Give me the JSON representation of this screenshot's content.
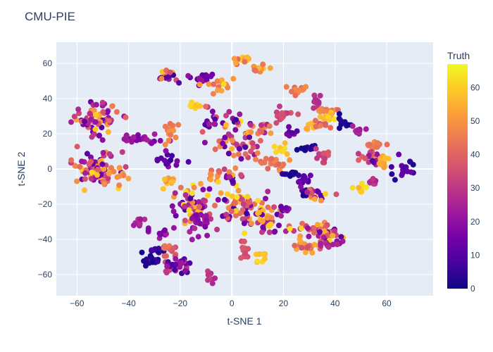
{
  "chart_data": {
    "type": "scatter",
    "title": "CMU-PIE",
    "xlabel": "t-SNE 1",
    "ylabel": "t-SNE 2",
    "xlim": [
      -68,
      78
    ],
    "ylim": [
      -72,
      72
    ],
    "xticks": [
      -60,
      -40,
      -20,
      0,
      20,
      40,
      60
    ],
    "yticks": [
      -60,
      -40,
      -20,
      0,
      20,
      40,
      60
    ],
    "grid": true,
    "colorbar": {
      "title": "Truth",
      "min": 0,
      "max": 67,
      "ticks": [
        0,
        10,
        20,
        30,
        40,
        50,
        60
      ],
      "colorscale": [
        "#0d0887",
        "#46039f",
        "#7201a8",
        "#9c179e",
        "#bd3786",
        "#d8576b",
        "#ed7953",
        "#fb9f3a",
        "#fdca26",
        "#f0f921"
      ]
    },
    "marker_size_px": 4,
    "clusters": [
      {
        "x": -53,
        "y": 29,
        "n": 70,
        "sx": 4.5,
        "sy": 4.5,
        "t": [
          10,
          60
        ]
      },
      {
        "x": -53,
        "y": 0,
        "n": 85,
        "sx": 4.5,
        "sy": 5,
        "t": [
          10,
          64
        ]
      },
      {
        "x": -36,
        "y": 17,
        "n": 25,
        "sx": 6,
        "sy": 1,
        "t": [
          15,
          25
        ]
      },
      {
        "x": -44,
        "y": -2,
        "n": 10,
        "sx": 2,
        "sy": 3,
        "t": [
          45,
          52
        ]
      },
      {
        "x": -25,
        "y": 53,
        "n": 16,
        "sx": 2,
        "sy": 2,
        "t": [
          5,
          62
        ]
      },
      {
        "x": -12,
        "y": 52,
        "n": 16,
        "sx": 2.5,
        "sy": 2,
        "t": [
          10,
          22
        ]
      },
      {
        "x": -6,
        "y": 48,
        "n": 18,
        "sx": 3,
        "sy": 2,
        "t": [
          40,
          65
        ]
      },
      {
        "x": 3,
        "y": 62,
        "n": 16,
        "sx": 1.5,
        "sy": 1.5,
        "t": [
          40,
          64
        ]
      },
      {
        "x": 11,
        "y": 56,
        "n": 14,
        "sx": 2,
        "sy": 2,
        "t": [
          40,
          64
        ]
      },
      {
        "x": -15,
        "y": 36,
        "n": 10,
        "sx": 1.5,
        "sy": 1,
        "t": [
          55,
          64
        ]
      },
      {
        "x": -24,
        "y": 20,
        "n": 14,
        "sx": 2,
        "sy": 4,
        "t": [
          40,
          52
        ]
      },
      {
        "x": -25,
        "y": 5,
        "n": 14,
        "sx": 2.5,
        "sy": 2.5,
        "t": [
          5,
          20
        ]
      },
      {
        "x": -25,
        "y": -7,
        "n": 10,
        "sx": 1.5,
        "sy": 1.5,
        "t": [
          50,
          60
        ]
      },
      {
        "x": -9,
        "y": 27,
        "n": 16,
        "sx": 2.5,
        "sy": 4,
        "t": [
          5,
          45
        ]
      },
      {
        "x": 0,
        "y": 28,
        "n": 16,
        "sx": 3,
        "sy": 3,
        "t": [
          5,
          64
        ]
      },
      {
        "x": 7,
        "y": 17,
        "n": 20,
        "sx": 3,
        "sy": 4,
        "t": [
          10,
          60
        ]
      },
      {
        "x": 13,
        "y": 23,
        "n": 10,
        "sx": 2,
        "sy": 2,
        "t": [
          25,
          55
        ]
      },
      {
        "x": -3,
        "y": 15,
        "n": 16,
        "sx": 3,
        "sy": 2,
        "t": [
          5,
          60
        ]
      },
      {
        "x": 5,
        "y": 10,
        "n": 12,
        "sx": 3,
        "sy": 2,
        "t": [
          5,
          55
        ]
      },
      {
        "x": -8,
        "y": -2,
        "n": 10,
        "sx": 2,
        "sy": 3,
        "t": [
          40,
          52
        ]
      },
      {
        "x": 0,
        "y": -5,
        "n": 22,
        "sx": 3,
        "sy": 4,
        "t": [
          5,
          64
        ]
      },
      {
        "x": -17,
        "y": -20,
        "n": 60,
        "sx": 5,
        "sy": 5.5,
        "t": [
          5,
          64
        ]
      },
      {
        "x": 5,
        "y": -22,
        "n": 70,
        "sx": 5,
        "sy": 5,
        "t": [
          5,
          64
        ]
      },
      {
        "x": -12,
        "y": -30,
        "n": 30,
        "sx": 3,
        "sy": 3,
        "t": [
          15,
          30
        ]
      },
      {
        "x": 13,
        "y": -30,
        "n": 25,
        "sx": 3,
        "sy": 3,
        "t": [
          10,
          60
        ]
      },
      {
        "x": 20,
        "y": -23,
        "n": 10,
        "sx": 2,
        "sy": 2,
        "t": [
          10,
          35
        ]
      },
      {
        "x": 11,
        "y": -50,
        "n": 8,
        "sx": 1,
        "sy": 2,
        "t": [
          55,
          64
        ]
      },
      {
        "x": 5,
        "y": -46,
        "n": 12,
        "sx": 1,
        "sy": 3,
        "t": [
          32,
          38
        ]
      },
      {
        "x": 16,
        "y": 3,
        "n": 20,
        "sx": 3,
        "sy": 2,
        "t": [
          40,
          50
        ]
      },
      {
        "x": 23,
        "y": -3,
        "n": 10,
        "sx": 2,
        "sy": 1,
        "t": [
          0,
          10
        ]
      },
      {
        "x": 25,
        "y": 45,
        "n": 14,
        "sx": 2.5,
        "sy": 1,
        "t": [
          40,
          50
        ]
      },
      {
        "x": 33,
        "y": 38,
        "n": 10,
        "sx": 1.5,
        "sy": 2,
        "t": [
          25,
          32
        ]
      },
      {
        "x": 20,
        "y": 31,
        "n": 16,
        "sx": 2.5,
        "sy": 2,
        "t": [
          30,
          38
        ]
      },
      {
        "x": 37,
        "y": 33,
        "n": 14,
        "sx": 2,
        "sy": 1,
        "t": [
          40,
          50
        ]
      },
      {
        "x": 37,
        "y": 30,
        "n": 10,
        "sx": 2,
        "sy": 1,
        "t": [
          55,
          64
        ]
      },
      {
        "x": 44,
        "y": 26,
        "n": 10,
        "sx": 1.5,
        "sy": 1.5,
        "t": [
          0,
          5
        ]
      },
      {
        "x": 31,
        "y": 25,
        "n": 10,
        "sx": 1.5,
        "sy": 1.5,
        "t": [
          50,
          58
        ]
      },
      {
        "x": 35,
        "y": 25,
        "n": 8,
        "sx": 1.5,
        "sy": 1.5,
        "t": [
          35,
          45
        ]
      },
      {
        "x": 22,
        "y": 20,
        "n": 8,
        "sx": 1.5,
        "sy": 1.5,
        "t": [
          10,
          20
        ]
      },
      {
        "x": 19,
        "y": 11,
        "n": 10,
        "sx": 1.5,
        "sy": 1.5,
        "t": [
          55,
          64
        ]
      },
      {
        "x": 30,
        "y": 12,
        "n": 10,
        "sx": 1.5,
        "sy": 1.5,
        "t": [
          0,
          5
        ]
      },
      {
        "x": 35,
        "y": 7,
        "n": 12,
        "sx": 1.5,
        "sy": 2,
        "t": [
          30,
          38
        ]
      },
      {
        "x": 28,
        "y": -7,
        "n": 12,
        "sx": 1.5,
        "sy": 2,
        "t": [
          5,
          15
        ]
      },
      {
        "x": 29,
        "y": -13,
        "n": 10,
        "sx": 1.5,
        "sy": 1.5,
        "t": [
          0,
          8
        ]
      },
      {
        "x": 33,
        "y": -15,
        "n": 20,
        "sx": 3,
        "sy": 2,
        "t": [
          10,
          60
        ]
      },
      {
        "x": 31,
        "y": -34,
        "n": 30,
        "sx": 5,
        "sy": 2,
        "t": [
          20,
          64
        ]
      },
      {
        "x": 38,
        "y": -38,
        "n": 25,
        "sx": 3,
        "sy": 2.5,
        "t": [
          10,
          64
        ]
      },
      {
        "x": 28,
        "y": -44,
        "n": 22,
        "sx": 3,
        "sy": 1.5,
        "t": [
          35,
          55
        ]
      },
      {
        "x": 38,
        "y": -43,
        "n": 12,
        "sx": 2.5,
        "sy": 1,
        "t": [
          20,
          30
        ]
      },
      {
        "x": 49,
        "y": 21,
        "n": 10,
        "sx": 2,
        "sy": 1.5,
        "t": [
          20,
          28
        ]
      },
      {
        "x": 56,
        "y": 14,
        "n": 12,
        "sx": 2,
        "sy": 1,
        "t": [
          42,
          48
        ]
      },
      {
        "x": 55,
        "y": 6,
        "n": 20,
        "sx": 2.5,
        "sy": 3,
        "t": [
          5,
          50
        ]
      },
      {
        "x": 59,
        "y": 5,
        "n": 12,
        "sx": 1.5,
        "sy": 2.5,
        "t": [
          50,
          64
        ]
      },
      {
        "x": 67,
        "y": 1,
        "n": 16,
        "sx": 2,
        "sy": 3,
        "t": [
          0,
          15
        ]
      },
      {
        "x": 50,
        "y": -10,
        "n": 10,
        "sx": 1.2,
        "sy": 1.2,
        "t": [
          55,
          64
        ]
      },
      {
        "x": 55,
        "y": -8,
        "n": 8,
        "sx": 1,
        "sy": 1.5,
        "t": [
          25,
          32
        ]
      },
      {
        "x": -36,
        "y": -30,
        "n": 10,
        "sx": 1,
        "sy": 1.5,
        "t": [
          22,
          30
        ]
      },
      {
        "x": -27,
        "y": -36,
        "n": 14,
        "sx": 2.5,
        "sy": 1.5,
        "t": [
          15,
          25
        ]
      },
      {
        "x": -30,
        "y": -46,
        "n": 10,
        "sx": 2,
        "sy": 1,
        "t": [
          0,
          8
        ]
      },
      {
        "x": -31,
        "y": -52,
        "n": 16,
        "sx": 2,
        "sy": 2,
        "t": [
          0,
          8
        ]
      },
      {
        "x": -24,
        "y": -47,
        "n": 12,
        "sx": 1.5,
        "sy": 2,
        "t": [
          35,
          45
        ]
      },
      {
        "x": -22,
        "y": -55,
        "n": 30,
        "sx": 3,
        "sy": 2.5,
        "t": [
          5,
          35
        ]
      },
      {
        "x": -8,
        "y": -61,
        "n": 8,
        "sx": 1,
        "sy": 1.5,
        "t": [
          25,
          32
        ]
      }
    ]
  }
}
